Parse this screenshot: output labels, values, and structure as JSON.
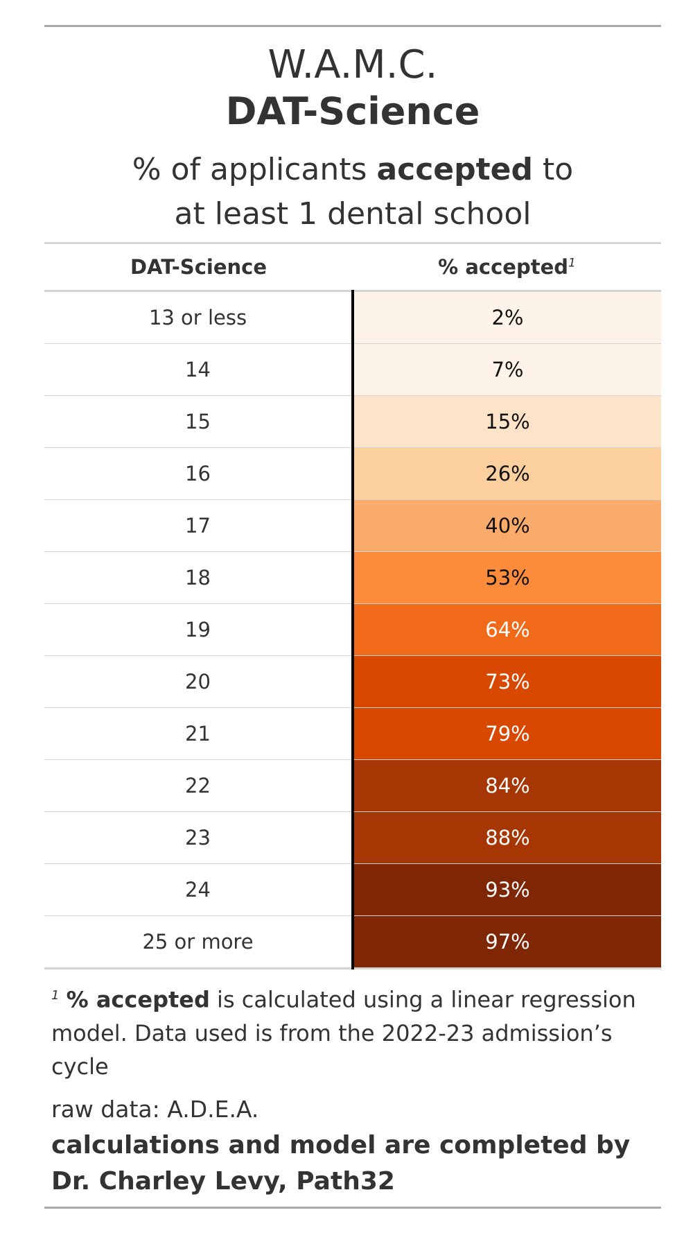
{
  "header": {
    "title": "W.A.M.C.",
    "subtitle": "DAT-Science",
    "description_pre": "% of applicants ",
    "description_bold": "accepted",
    "description_post": " to",
    "description_line2": "at least 1 dental school"
  },
  "columns": {
    "score": "DAT-Science",
    "pct": "% accepted",
    "pct_footnote_mark": "1"
  },
  "chart_data": {
    "type": "table",
    "columns": [
      "DAT-Science",
      "% accepted"
    ],
    "categories": [
      "13 or less",
      "14",
      "15",
      "16",
      "17",
      "18",
      "19",
      "20",
      "21",
      "22",
      "23",
      "24",
      "25 or more"
    ],
    "values": [
      2,
      7,
      15,
      26,
      40,
      53,
      64,
      73,
      79,
      84,
      88,
      93,
      97
    ],
    "labels": [
      "2%",
      "7%",
      "15%",
      "26%",
      "40%",
      "53%",
      "64%",
      "73%",
      "79%",
      "84%",
      "88%",
      "93%",
      "97%"
    ],
    "colors": [
      "#fef3e8",
      "#fef3e8",
      "#fde3c8",
      "#fccf9f",
      "#fbab6b",
      "#fc8c3b",
      "#f06a1a",
      "#d94801",
      "#d94801",
      "#a63603",
      "#a63603",
      "#7f2704",
      "#7f2704"
    ],
    "text_colors": [
      "#111111",
      "#111111",
      "#111111",
      "#111111",
      "#111111",
      "#111111",
      "#ffffff",
      "#ffffff",
      "#ffffff",
      "#ffffff",
      "#ffffff",
      "#ffffff",
      "#ffffff"
    ]
  },
  "footnote": {
    "mark": "1",
    "bold": "% accepted",
    "text": " is calculated using a linear regression model. Data used is from the 2022-23 admission’s cycle"
  },
  "source": {
    "raw": "raw data: A.D.E.A.",
    "credit_line1": "calculations and model are completed by",
    "credit_line2": "Dr. Charley Levy, Path32"
  }
}
